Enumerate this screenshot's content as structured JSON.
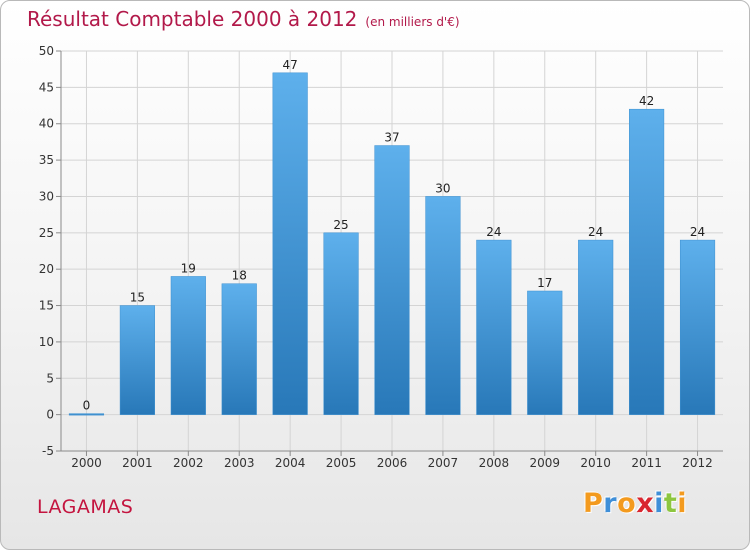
{
  "title": "Résultat Comptable 2000 à 2012",
  "subtitle": "(en milliers d'€)",
  "commune": "LAGAMAS",
  "logo": {
    "letters": [
      "P",
      "r",
      "o",
      "x",
      "i",
      "t",
      "i"
    ],
    "colors": [
      "#f39a1e",
      "#3f8fd8",
      "#f39a1e",
      "#d9262f",
      "#3f8fd8",
      "#8dc63f",
      "#f39a1e"
    ]
  },
  "colors": {
    "bar_light": "#5eb0ec",
    "bar_dark": "#2878b8",
    "grid": "#d4d4d4",
    "axis": "#8a8a8a",
    "title": "#b2194a"
  },
  "chart_data": {
    "type": "bar",
    "categories": [
      "2000",
      "2001",
      "2002",
      "2003",
      "2004",
      "2005",
      "2006",
      "2007",
      "2008",
      "2009",
      "2010",
      "2011",
      "2012"
    ],
    "values": [
      0,
      15,
      19,
      18,
      47,
      25,
      37,
      30,
      24,
      17,
      24,
      42,
      24
    ],
    "title": "Résultat Comptable 2000 à 2012",
    "xlabel": "",
    "ylabel": "",
    "ylim": [
      -5,
      50
    ],
    "yticks": [
      -5,
      0,
      5,
      10,
      15,
      20,
      25,
      30,
      35,
      40,
      45,
      50
    ],
    "grid": true
  }
}
